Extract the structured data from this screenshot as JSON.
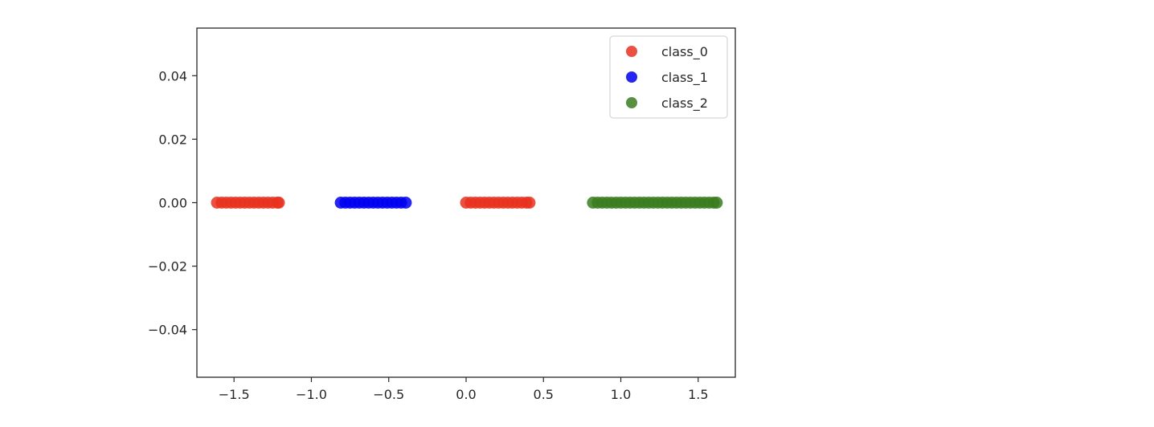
{
  "chart_data": {
    "type": "scatter",
    "title": "",
    "xlabel": "",
    "ylabel": "",
    "xlim": [
      -1.74,
      1.74
    ],
    "ylim": [
      -0.055,
      0.055
    ],
    "grid": false,
    "legend_position": "top-right",
    "x_ticks": [
      -1.5,
      -1.0,
      -0.5,
      0.0,
      0.5,
      1.0,
      1.5
    ],
    "x_tick_labels": [
      "−1.5",
      "−1.0",
      "−0.5",
      "0.0",
      "0.5",
      "1.0",
      "1.5"
    ],
    "y_ticks": [
      0.04,
      0.02,
      0.0,
      -0.02,
      -0.04
    ],
    "y_tick_labels": [
      "0.04",
      "0.02",
      "0.00",
      "−0.02",
      "−0.04"
    ],
    "series": [
      {
        "name": "class_0",
        "color": "#e8311f",
        "x": [
          -1.61,
          -1.58,
          -1.55,
          -1.52,
          -1.49,
          -1.46,
          -1.43,
          -1.4,
          -1.37,
          -1.34,
          -1.31,
          -1.28,
          -1.25,
          -1.22,
          -1.21,
          0.0,
          0.03,
          0.06,
          0.09,
          0.12,
          0.15,
          0.18,
          0.21,
          0.24,
          0.27,
          0.3,
          0.33,
          0.36,
          0.39,
          0.41
        ],
        "y": [
          0,
          0,
          0,
          0,
          0,
          0,
          0,
          0,
          0,
          0,
          0,
          0,
          0,
          0,
          0,
          0,
          0,
          0,
          0,
          0,
          0,
          0,
          0,
          0,
          0,
          0,
          0,
          0,
          0,
          0
        ]
      },
      {
        "name": "class_1",
        "color": "#0000f0",
        "x": [
          -0.81,
          -0.78,
          -0.75,
          -0.72,
          -0.69,
          -0.66,
          -0.63,
          -0.6,
          -0.57,
          -0.54,
          -0.51,
          -0.48,
          -0.45,
          -0.42,
          -0.39
        ],
        "y": [
          0,
          0,
          0,
          0,
          0,
          0,
          0,
          0,
          0,
          0,
          0,
          0,
          0,
          0,
          0
        ]
      },
      {
        "name": "class_2",
        "color": "#3a7d1f",
        "x": [
          0.82,
          0.85,
          0.88,
          0.91,
          0.94,
          0.97,
          1.0,
          1.03,
          1.06,
          1.09,
          1.12,
          1.15,
          1.18,
          1.21,
          1.24,
          1.27,
          1.3,
          1.33,
          1.36,
          1.39,
          1.42,
          1.45,
          1.48,
          1.51,
          1.54,
          1.57,
          1.6,
          1.62
        ],
        "y": [
          0,
          0,
          0,
          0,
          0,
          0,
          0,
          0,
          0,
          0,
          0,
          0,
          0,
          0,
          0,
          0,
          0,
          0,
          0,
          0,
          0,
          0,
          0,
          0,
          0,
          0,
          0,
          0
        ]
      }
    ]
  }
}
